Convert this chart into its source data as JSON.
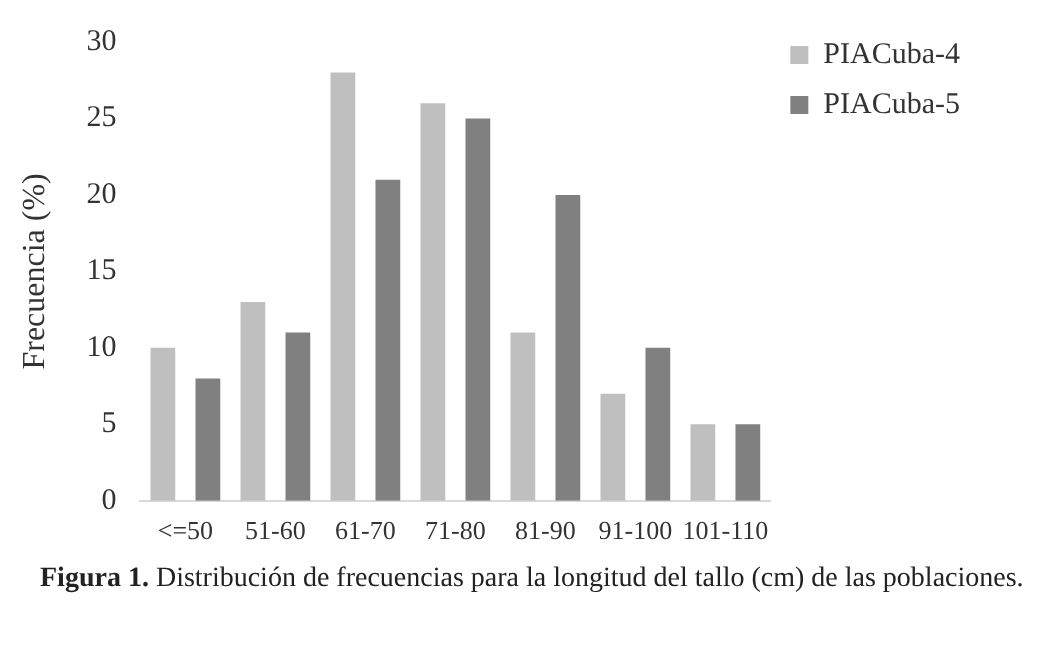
{
  "chart_data": {
    "type": "bar",
    "ylabel": "Frecuencia (%)",
    "categories": [
      "<=50",
      "51-60",
      "61-70",
      "71-80",
      "81-90",
      "91-100",
      "101-110"
    ],
    "series": [
      {
        "name": "PIACuba-4",
        "color": "#bfbfbf",
        "values": [
          10,
          13,
          28,
          26,
          11,
          7,
          5
        ]
      },
      {
        "name": "PIACuba-5",
        "color": "#808080",
        "values": [
          8,
          11,
          21,
          25,
          20,
          10,
          5
        ]
      }
    ],
    "ylim": [
      0,
      30
    ],
    "yticks": [
      0,
      5,
      10,
      15,
      20,
      25,
      30
    ],
    "grid": false,
    "legend": "top right",
    "annotations": [
      "Figura 1.",
      "Distribución de frecuencias para la longitud del tallo (cm) de las poblaciones."
    ]
  }
}
